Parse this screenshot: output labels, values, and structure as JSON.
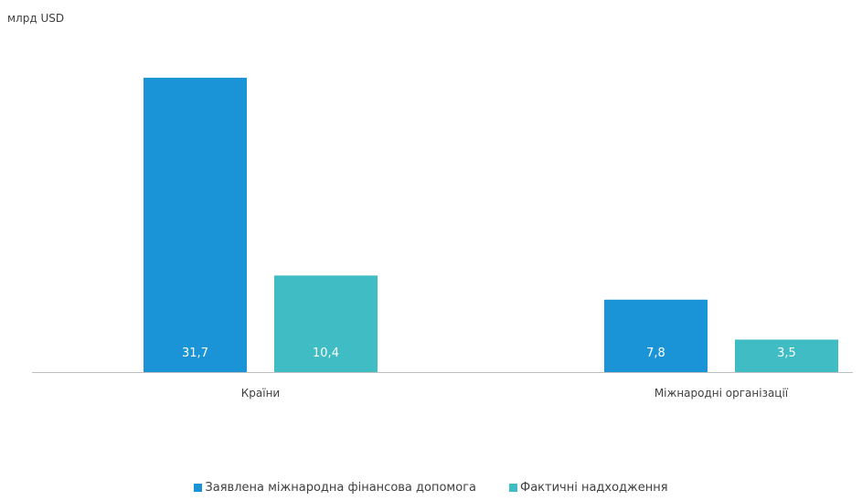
{
  "chart_data": {
    "type": "bar",
    "unit_label": "млрд USD",
    "categories": [
      "Країни",
      "Міжнародні організації"
    ],
    "series": [
      {
        "name": "Заявлена міжнародна фінансова допомога",
        "values": [
          31.7,
          7.8
        ],
        "labels": [
          "31,7",
          "7,8"
        ],
        "color": "#1a93d7"
      },
      {
        "name": "Фактичні надходження",
        "values": [
          10.4,
          3.5
        ],
        "labels": [
          "10,4",
          "3,5"
        ],
        "color": "#3fbcc4"
      }
    ],
    "ylim": [
      0,
      32
    ],
    "grid": false,
    "legend_position": "bottom"
  }
}
